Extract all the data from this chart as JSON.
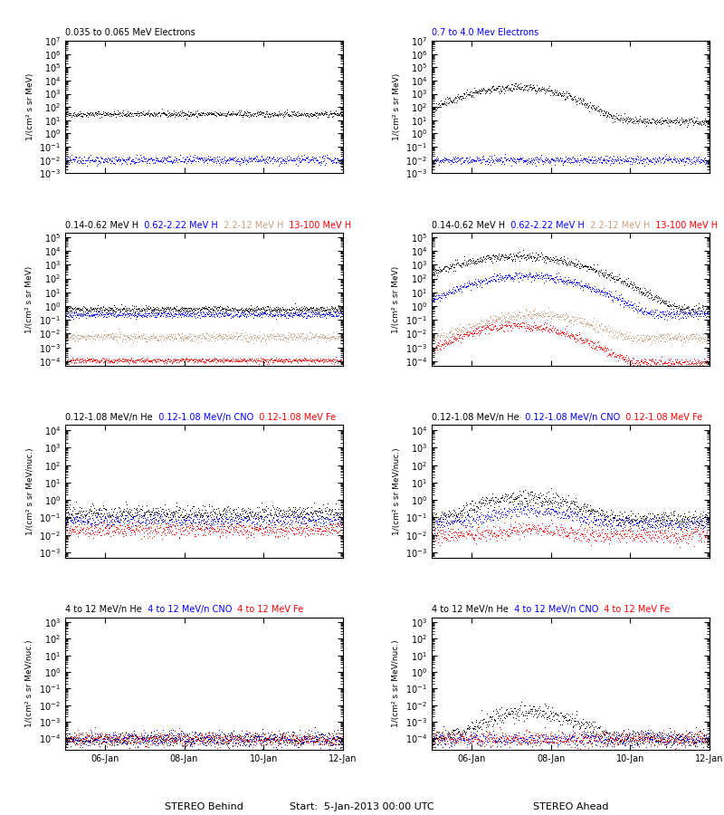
{
  "title_left_row1": "0.035 to 0.065 MeV Electrons",
  "title_right_row1": "0.7 to 4.0 Mev Electrons",
  "row2_parts": [
    {
      "text": "0.14-0.62 MeV H",
      "color": "black"
    },
    {
      "text": "  0.62-2.22 MeV H",
      "color": "blue"
    },
    {
      "text": "  2.2-12 MeV H",
      "color": "#c8a080"
    },
    {
      "text": "  13-100 MeV H",
      "color": "red"
    }
  ],
  "row3_parts": [
    {
      "text": "0.12-1.08 MeV/n He",
      "color": "black"
    },
    {
      "text": "  0.12-1.08 MeV/n CNO",
      "color": "blue"
    },
    {
      "text": "  0.12-1.08 MeV Fe",
      "color": "red"
    }
  ],
  "row4_parts": [
    {
      "text": "4 to 12 MeV/n He",
      "color": "black"
    },
    {
      "text": "  4 to 12 MeV/n CNO",
      "color": "blue"
    },
    {
      "text": "  4 to 12 MeV Fe",
      "color": "red"
    }
  ],
  "xlabel_left": "STEREO Behind",
  "xlabel_right": "STEREO Ahead",
  "xlabel_center": "Start:  5-Jan-2013 00:00 UTC",
  "ylabel_row12": "1/(cm² s sr MeV)",
  "ylabel_row34": "1/(cm² s sr MeV/nuc.)",
  "xtick_labels": [
    "06-Jan",
    "08-Jan",
    "10-Jan",
    "12-Jan"
  ],
  "xtick_positions": [
    24,
    72,
    120,
    168
  ],
  "brown": "#c8a080"
}
